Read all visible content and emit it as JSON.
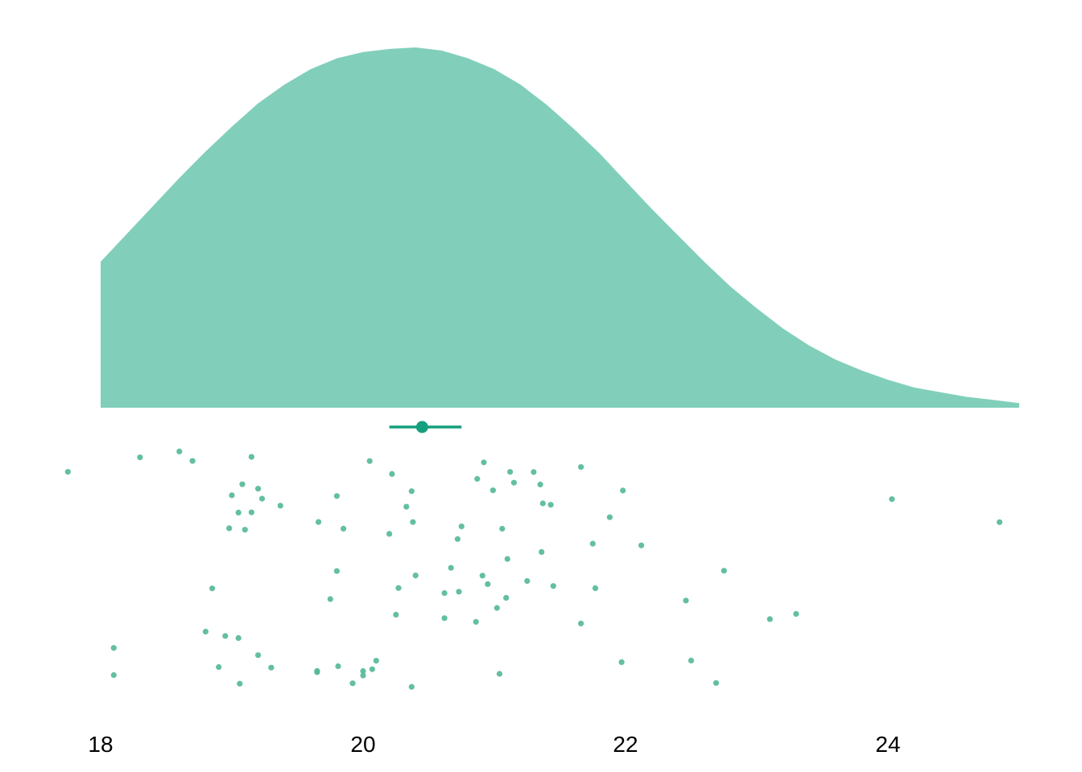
{
  "chart_data": {
    "type": "raincloud",
    "title": "",
    "xlabel": "",
    "ylabel": "",
    "xlim": [
      17.75,
      25.0
    ],
    "x_ticks": [
      {
        "value": 18,
        "label": "18"
      },
      {
        "value": 20,
        "label": "20"
      },
      {
        "value": 22,
        "label": "22"
      },
      {
        "value": 24,
        "label": "24"
      }
    ],
    "grid": false,
    "legend": "none",
    "colors": {
      "density_fill": "#81cfba",
      "summary": "#159f7c",
      "points": "#52b896"
    },
    "density": {
      "x": [
        18.0,
        18.2,
        18.4,
        18.6,
        18.8,
        19.0,
        19.2,
        19.4,
        19.6,
        19.8,
        20.0,
        20.2,
        20.4,
        20.6,
        20.8,
        21.0,
        21.2,
        21.4,
        21.6,
        21.8,
        22.0,
        22.2,
        22.4,
        22.6,
        22.8,
        23.0,
        23.2,
        23.4,
        23.6,
        23.8,
        24.0,
        24.2,
        24.4,
        24.6,
        24.8,
        25.0
      ],
      "density": [
        0.094,
        0.112,
        0.13,
        0.148,
        0.165,
        0.181,
        0.196,
        0.208,
        0.218,
        0.225,
        0.229,
        0.231,
        0.232,
        0.23,
        0.225,
        0.218,
        0.208,
        0.195,
        0.18,
        0.164,
        0.146,
        0.128,
        0.111,
        0.094,
        0.078,
        0.064,
        0.051,
        0.04,
        0.031,
        0.024,
        0.018,
        0.013,
        0.01,
        0.007,
        0.005,
        0.003
      ]
    },
    "summary": {
      "point": 20.45,
      "interval": [
        20.2,
        20.75
      ]
    },
    "points": [
      17.75,
      18.1,
      18.1,
      18.3,
      18.6,
      18.7,
      18.8,
      18.85,
      18.9,
      18.95,
      18.98,
      19.0,
      19.05,
      19.05,
      19.06,
      19.08,
      19.1,
      19.15,
      19.15,
      19.2,
      19.2,
      19.23,
      19.3,
      19.37,
      19.65,
      19.65,
      19.66,
      19.75,
      19.8,
      19.8,
      19.81,
      19.85,
      19.92,
      20.0,
      20.0,
      20.05,
      20.07,
      20.1,
      20.2,
      20.22,
      20.25,
      20.27,
      20.33,
      20.37,
      20.37,
      20.38,
      20.4,
      20.62,
      20.62,
      20.67,
      20.72,
      20.73,
      20.75,
      20.86,
      20.87,
      20.91,
      20.92,
      20.95,
      20.99,
      21.02,
      21.04,
      21.06,
      21.09,
      21.1,
      21.12,
      21.15,
      21.25,
      21.3,
      21.35,
      21.36,
      21.37,
      21.43,
      21.45,
      21.66,
      21.66,
      21.77,
      21.75,
      21.88,
      21.97,
      21.98,
      22.12,
      22.46,
      22.5,
      22.69,
      22.75,
      23.1,
      23.3,
      24.03,
      24.85
    ]
  }
}
